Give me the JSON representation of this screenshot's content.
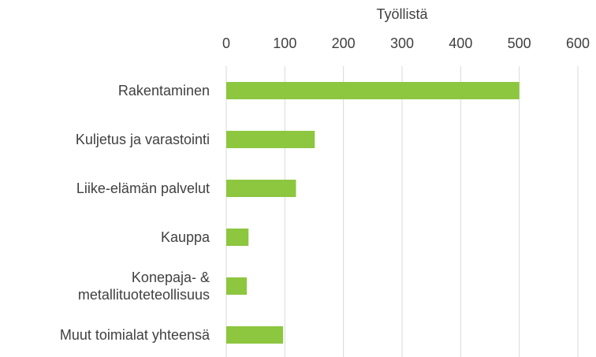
{
  "chart_data": {
    "type": "bar",
    "orientation": "horizontal",
    "x_label": "Työllistä",
    "categories": [
      "Rakentaminen",
      "Kuljetus ja varastointi",
      "Liike-elämän palvelut",
      "Kauppa",
      "Konepaja- & metallituoteteollisuus",
      "Muut toimialat yhteensä"
    ],
    "values": [
      500,
      151,
      119,
      38,
      35,
      97
    ],
    "color": "#8dc63f",
    "xlim": [
      0,
      600
    ],
    "xticks": [
      0,
      100,
      200,
      300,
      400,
      500,
      600
    ],
    "grid": true
  }
}
